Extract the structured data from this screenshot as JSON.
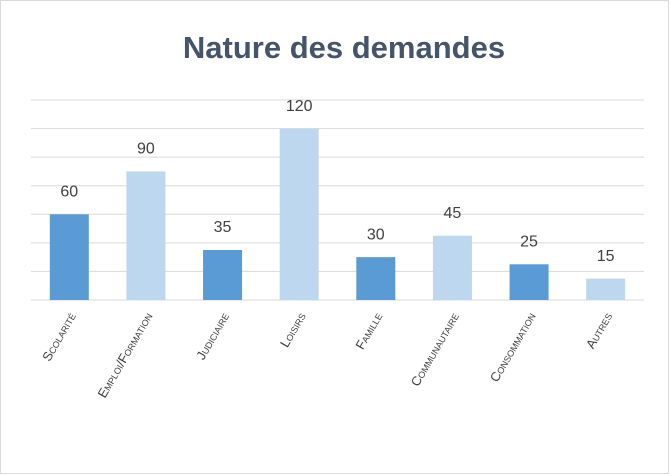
{
  "chart_data": {
    "type": "bar",
    "title": "Nature des demandes",
    "categories": [
      "Scolarité",
      "Emploi/Formation",
      "Judiciaire",
      "Loisirs",
      "Famille",
      "Communautaire",
      "Consommation",
      "Autres"
    ],
    "values": [
      60,
      90,
      35,
      120,
      30,
      45,
      25,
      15
    ],
    "colors": [
      "#5b9bd5",
      "#bdd7ee",
      "#5b9bd5",
      "#bdd7ee",
      "#5b9bd5",
      "#bdd7ee",
      "#5b9bd5",
      "#bdd7ee"
    ],
    "ylim": [
      0,
      140
    ],
    "yticks": [
      0,
      20,
      40,
      60,
      80,
      100,
      120,
      140
    ],
    "grid": true
  }
}
